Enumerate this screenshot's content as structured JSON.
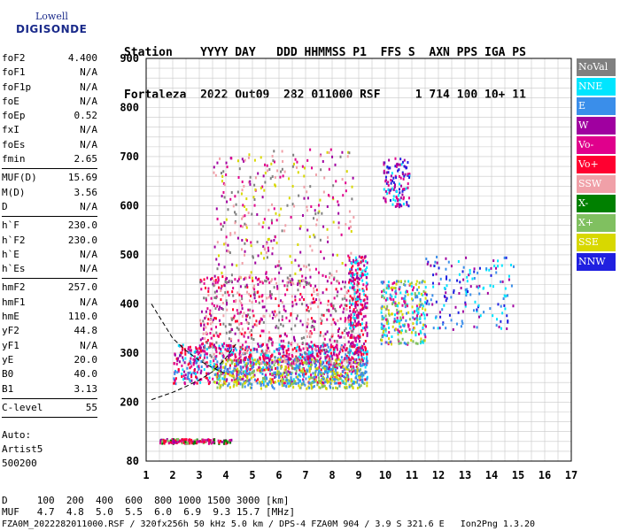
{
  "logo": {
    "line1": "Lowell",
    "line2": "DIGISONDE"
  },
  "header": {
    "line1": "Station    YYYY DAY   DDD HHMMSS P1  FFS S  AXN PPS IGA PS",
    "line2": "Fortaleza  2022 Out09  282 011000 RSF     1 714 100 10+ 11"
  },
  "params": [
    {
      "k": "foF2",
      "v": "4.400"
    },
    {
      "k": "foF1",
      "v": "N/A"
    },
    {
      "k": "foF1p",
      "v": "N/A"
    },
    {
      "k": "foE",
      "v": "N/A"
    },
    {
      "k": "foEp",
      "v": "0.52"
    },
    {
      "k": "fxI",
      "v": "N/A"
    },
    {
      "k": "foEs",
      "v": "N/A"
    },
    {
      "k": "fmin",
      "v": "2.65"
    },
    {
      "sep": true
    },
    {
      "k": "MUF(D)",
      "v": "15.69"
    },
    {
      "k": "M(D)",
      "v": "3.56"
    },
    {
      "k": "D",
      "v": "N/A"
    },
    {
      "sep": true
    },
    {
      "k": "h`F",
      "v": "230.0"
    },
    {
      "k": "h`F2",
      "v": "230.0"
    },
    {
      "k": "h`E",
      "v": "N/A"
    },
    {
      "k": "h`Es",
      "v": "N/A"
    },
    {
      "sep": true
    },
    {
      "k": "hmF2",
      "v": "257.0"
    },
    {
      "k": "hmF1",
      "v": "N/A"
    },
    {
      "k": "hmE",
      "v": "110.0"
    },
    {
      "k": "yF2",
      "v": "44.8"
    },
    {
      "k": "yF1",
      "v": "N/A"
    },
    {
      "k": "yE",
      "v": "20.0"
    },
    {
      "k": "B0",
      "v": "40.0"
    },
    {
      "k": "B1",
      "v": "3.13"
    },
    {
      "sep": true
    },
    {
      "k": "C-level",
      "v": "55"
    },
    {
      "sep": true
    }
  ],
  "auto": {
    "line1": "Auto:",
    "line2": "Artist5",
    "line3": "500200"
  },
  "legend": [
    {
      "label": "NoVal",
      "color": "#808080"
    },
    {
      "label": "NNE",
      "color": "#00e5ff"
    },
    {
      "label": "E",
      "color": "#3a8eea"
    },
    {
      "label": "W",
      "color": "#a000a0"
    },
    {
      "label": "Vo-",
      "color": "#e0008c"
    },
    {
      "label": "Vo+",
      "color": "#ff0030"
    },
    {
      "label": "SSW",
      "color": "#f0a0a8"
    },
    {
      "label": "X-",
      "color": "#008000"
    },
    {
      "label": "X+",
      "color": "#80c060"
    },
    {
      "label": "SSE",
      "color": "#d8d800"
    },
    {
      "label": "NNW",
      "color": "#2020e0"
    }
  ],
  "footer": {
    "line1": "D     100  200  400  600  800 1000 1500 3000 [km]",
    "line2": "MUF   4.7  4.8  5.0  5.5  6.0  6.9  9.3 15.7 [MHz]",
    "line3": "FZA0M_2022282011000.RSF / 320fx256h 50 kHz 5.0 km / DPS-4 FZA0M 904 / 3.9 S 321.6 E   Ion2Png 1.3.20"
  },
  "chart_data": {
    "type": "scatter",
    "xlim": [
      1,
      17
    ],
    "ylim": [
      80,
      900
    ],
    "x_ticks": [
      1,
      2,
      3,
      4,
      5,
      6,
      7,
      8,
      9,
      10,
      11,
      12,
      13,
      14,
      15,
      16,
      17
    ],
    "y_ticks": [
      80,
      200,
      300,
      400,
      500,
      600,
      700,
      800,
      900
    ],
    "grid": true,
    "clusters": [
      {
        "x": [
          2.0,
          9.3
        ],
        "y": [
          240,
          320
        ],
        "n": 900,
        "colors": [
          "#ff0030",
          "#e0008c",
          "#3a8eea",
          "#00e5ff",
          "#a000a0"
        ]
      },
      {
        "x": [
          3.5,
          9.3
        ],
        "y": [
          230,
          290
        ],
        "n": 500,
        "colors": [
          "#d8d800",
          "#80c060",
          "#3a8eea"
        ]
      },
      {
        "x": [
          3.0,
          9.0
        ],
        "y": [
          280,
          460
        ],
        "n": 700,
        "colors": [
          "#e0008c",
          "#a000a0",
          "#ff0030",
          "#808080",
          "#f0a0a8"
        ]
      },
      {
        "x": [
          3.5,
          8.8
        ],
        "y": [
          440,
          720
        ],
        "n": 350,
        "colors": [
          "#808080",
          "#f0a0a8",
          "#a000a0",
          "#e0008c",
          "#d8d800"
        ]
      },
      {
        "x": [
          8.6,
          9.3
        ],
        "y": [
          300,
          500
        ],
        "n": 250,
        "colors": [
          "#e0008c",
          "#ff0030",
          "#a000a0",
          "#00e5ff"
        ]
      },
      {
        "x": [
          9.8,
          11.5
        ],
        "y": [
          320,
          450
        ],
        "n": 300,
        "colors": [
          "#00e5ff",
          "#3a8eea",
          "#d8d800",
          "#80c060",
          "#e0008c"
        ]
      },
      {
        "x": [
          9.9,
          10.9
        ],
        "y": [
          600,
          700
        ],
        "n": 120,
        "colors": [
          "#a000a0",
          "#00e5ff",
          "#2020e0",
          "#e0008c"
        ]
      },
      {
        "x": [
          11.5,
          14.8
        ],
        "y": [
          350,
          500
        ],
        "n": 160,
        "colors": [
          "#2020e0",
          "#00e5ff",
          "#a000a0",
          "#3a8eea"
        ]
      },
      {
        "x": [
          1.5,
          4.2
        ],
        "y": [
          118,
          127
        ],
        "n": 160,
        "colors": [
          "#a000a0",
          "#e0008c",
          "#008000",
          "#80c060",
          "#ff0030"
        ]
      }
    ],
    "profile_curve": [
      [
        1.2,
        205
      ],
      [
        2.0,
        220
      ],
      [
        2.5,
        232
      ],
      [
        3.0,
        245
      ],
      [
        3.5,
        262
      ],
      [
        4.0,
        290
      ],
      [
        4.4,
        320
      ]
    ],
    "profile_top": [
      [
        1.2,
        400
      ],
      [
        2.0,
        330
      ],
      [
        2.5,
        305
      ],
      [
        3.0,
        285
      ],
      [
        3.5,
        270
      ],
      [
        4.0,
        258
      ]
    ]
  }
}
